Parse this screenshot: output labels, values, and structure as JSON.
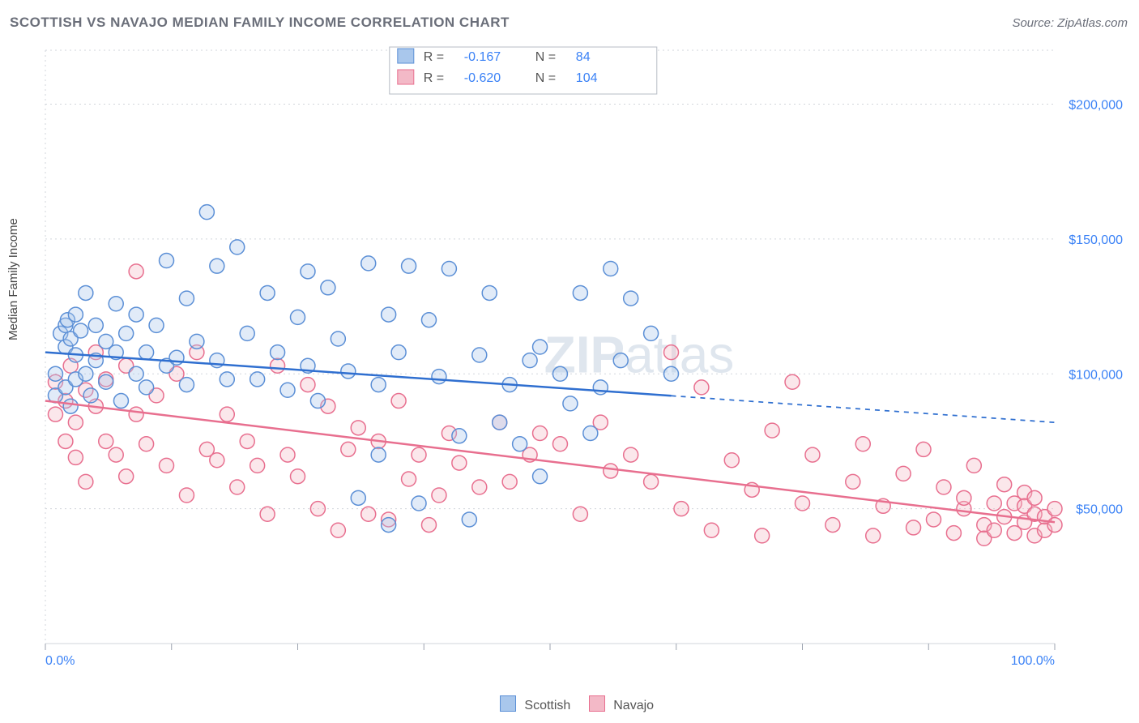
{
  "title": "SCOTTISH VS NAVAJO MEDIAN FAMILY INCOME CORRELATION CHART",
  "source": "Source: ZipAtlas.com",
  "ylabel": "Median Family Income",
  "watermark": {
    "bold": "ZIP",
    "rest": "atlas",
    "color": "#dfe6ee",
    "fontsize": 64
  },
  "chart": {
    "type": "scatter",
    "background_color": "#ffffff",
    "grid_color": "#d1d5db",
    "axis_color": "#9ca3af",
    "xlim": [
      0,
      100
    ],
    "ylim": [
      0,
      220000
    ],
    "y_ticks": [
      50000,
      100000,
      150000,
      200000
    ],
    "y_labels": [
      "$50,000",
      "$100,000",
      "$150,000",
      "$200,000"
    ],
    "x_ticks": [
      0,
      12.5,
      25,
      37.5,
      50,
      62.5,
      75,
      87.5,
      100
    ],
    "x_labels_shown": {
      "0": "0.0%",
      "100": "100.0%"
    },
    "marker_radius": 9,
    "marker_fill_opacity": 0.35,
    "marker_stroke_width": 1.5,
    "series": {
      "scottish": {
        "label": "Scottish",
        "color_fill": "#a9c7ec",
        "color_stroke": "#5b8fd6",
        "R": "-0.167",
        "N": "84",
        "trend": {
          "y_at_x0": 108000,
          "y_at_x100": 82000,
          "solid_until_x": 62,
          "color": "#2f6fd0",
          "width": 2.5
        },
        "points": [
          [
            1,
            100000
          ],
          [
            1,
            92000
          ],
          [
            1.5,
            115000
          ],
          [
            2,
            118000
          ],
          [
            2,
            110000
          ],
          [
            2,
            95000
          ],
          [
            2.2,
            120000
          ],
          [
            2.5,
            113000
          ],
          [
            2.5,
            88000
          ],
          [
            3,
            122000
          ],
          [
            3,
            107000
          ],
          [
            3,
            98000
          ],
          [
            3.5,
            116000
          ],
          [
            4,
            130000
          ],
          [
            4,
            100000
          ],
          [
            4.5,
            92000
          ],
          [
            5,
            118000
          ],
          [
            5,
            105000
          ],
          [
            6,
            112000
          ],
          [
            6,
            97000
          ],
          [
            7,
            126000
          ],
          [
            7,
            108000
          ],
          [
            7.5,
            90000
          ],
          [
            8,
            115000
          ],
          [
            9,
            100000
          ],
          [
            9,
            122000
          ],
          [
            10,
            108000
          ],
          [
            10,
            95000
          ],
          [
            11,
            118000
          ],
          [
            12,
            142000
          ],
          [
            12,
            103000
          ],
          [
            13,
            106000
          ],
          [
            14,
            128000
          ],
          [
            14,
            96000
          ],
          [
            15,
            112000
          ],
          [
            16,
            160000
          ],
          [
            17,
            105000
          ],
          [
            17,
            140000
          ],
          [
            18,
            98000
          ],
          [
            19,
            147000
          ],
          [
            20,
            115000
          ],
          [
            21,
            98000
          ],
          [
            22,
            130000
          ],
          [
            23,
            108000
          ],
          [
            24,
            94000
          ],
          [
            25,
            121000
          ],
          [
            26,
            138000
          ],
          [
            26,
            103000
          ],
          [
            27,
            90000
          ],
          [
            28,
            132000
          ],
          [
            29,
            113000
          ],
          [
            30,
            101000
          ],
          [
            31,
            54000
          ],
          [
            32,
            141000
          ],
          [
            33,
            96000
          ],
          [
            33,
            70000
          ],
          [
            34,
            122000
          ],
          [
            34,
            44000
          ],
          [
            35,
            108000
          ],
          [
            36,
            140000
          ],
          [
            37,
            52000
          ],
          [
            38,
            120000
          ],
          [
            39,
            99000
          ],
          [
            40,
            139000
          ],
          [
            41,
            77000
          ],
          [
            42,
            46000
          ],
          [
            43,
            107000
          ],
          [
            44,
            130000
          ],
          [
            45,
            82000
          ],
          [
            46,
            96000
          ],
          [
            47,
            74000
          ],
          [
            48,
            105000
          ],
          [
            49,
            62000
          ],
          [
            49,
            110000
          ],
          [
            51,
            100000
          ],
          [
            52,
            89000
          ],
          [
            53,
            130000
          ],
          [
            54,
            78000
          ],
          [
            55,
            95000
          ],
          [
            56,
            139000
          ],
          [
            57,
            105000
          ],
          [
            58,
            128000
          ],
          [
            60,
            115000
          ],
          [
            62,
            100000
          ]
        ]
      },
      "navajo": {
        "label": "Navajo",
        "color_fill": "#f3b9c7",
        "color_stroke": "#e86f8f",
        "R": "-0.620",
        "N": "104",
        "trend": {
          "y_at_x0": 90000,
          "y_at_x100": 45000,
          "solid_until_x": 100,
          "color": "#e86f8f",
          "width": 2.5
        },
        "points": [
          [
            1,
            97000
          ],
          [
            1,
            85000
          ],
          [
            2,
            90000
          ],
          [
            2,
            75000
          ],
          [
            2.5,
            103000
          ],
          [
            3,
            82000
          ],
          [
            3,
            69000
          ],
          [
            4,
            94000
          ],
          [
            4,
            60000
          ],
          [
            5,
            108000
          ],
          [
            5,
            88000
          ],
          [
            6,
            75000
          ],
          [
            6,
            98000
          ],
          [
            7,
            70000
          ],
          [
            8,
            103000
          ],
          [
            8,
            62000
          ],
          [
            9,
            85000
          ],
          [
            9,
            138000
          ],
          [
            10,
            74000
          ],
          [
            11,
            92000
          ],
          [
            12,
            66000
          ],
          [
            13,
            100000
          ],
          [
            14,
            55000
          ],
          [
            15,
            108000
          ],
          [
            16,
            72000
          ],
          [
            17,
            68000
          ],
          [
            18,
            85000
          ],
          [
            19,
            58000
          ],
          [
            20,
            75000
          ],
          [
            21,
            66000
          ],
          [
            22,
            48000
          ],
          [
            23,
            103000
          ],
          [
            24,
            70000
          ],
          [
            25,
            62000
          ],
          [
            26,
            96000
          ],
          [
            27,
            50000
          ],
          [
            28,
            88000
          ],
          [
            29,
            42000
          ],
          [
            30,
            72000
          ],
          [
            31,
            80000
          ],
          [
            32,
            48000
          ],
          [
            33,
            75000
          ],
          [
            34,
            46000
          ],
          [
            35,
            90000
          ],
          [
            36,
            61000
          ],
          [
            37,
            70000
          ],
          [
            38,
            44000
          ],
          [
            39,
            55000
          ],
          [
            40,
            78000
          ],
          [
            41,
            67000
          ],
          [
            43,
            58000
          ],
          [
            45,
            82000
          ],
          [
            46,
            60000
          ],
          [
            48,
            70000
          ],
          [
            49,
            78000
          ],
          [
            51,
            74000
          ],
          [
            53,
            48000
          ],
          [
            55,
            82000
          ],
          [
            56,
            64000
          ],
          [
            58,
            70000
          ],
          [
            60,
            60000
          ],
          [
            62,
            108000
          ],
          [
            63,
            50000
          ],
          [
            65,
            95000
          ],
          [
            66,
            42000
          ],
          [
            68,
            68000
          ],
          [
            70,
            57000
          ],
          [
            71,
            40000
          ],
          [
            72,
            79000
          ],
          [
            74,
            97000
          ],
          [
            75,
            52000
          ],
          [
            76,
            70000
          ],
          [
            78,
            44000
          ],
          [
            80,
            60000
          ],
          [
            81,
            74000
          ],
          [
            82,
            40000
          ],
          [
            83,
            51000
          ],
          [
            85,
            63000
          ],
          [
            86,
            43000
          ],
          [
            87,
            72000
          ],
          [
            88,
            46000
          ],
          [
            89,
            58000
          ],
          [
            90,
            41000
          ],
          [
            91,
            50000
          ],
          [
            91,
            54000
          ],
          [
            92,
            66000
          ],
          [
            93,
            44000
          ],
          [
            93,
            39000
          ],
          [
            94,
            52000
          ],
          [
            94,
            42000
          ],
          [
            95,
            59000
          ],
          [
            95,
            47000
          ],
          [
            96,
            52000
          ],
          [
            96,
            41000
          ],
          [
            97,
            56000
          ],
          [
            97,
            45000
          ],
          [
            97,
            51000
          ],
          [
            98,
            48000
          ],
          [
            98,
            40000
          ],
          [
            98,
            54000
          ],
          [
            99,
            47000
          ],
          [
            99,
            42000
          ],
          [
            100,
            50000
          ],
          [
            100,
            44000
          ]
        ]
      }
    }
  },
  "bottom_legend": [
    {
      "label": "Scottish",
      "fill": "#a9c7ec",
      "stroke": "#5b8fd6"
    },
    {
      "label": "Navajo",
      "fill": "#f3b9c7",
      "stroke": "#e86f8f"
    }
  ]
}
